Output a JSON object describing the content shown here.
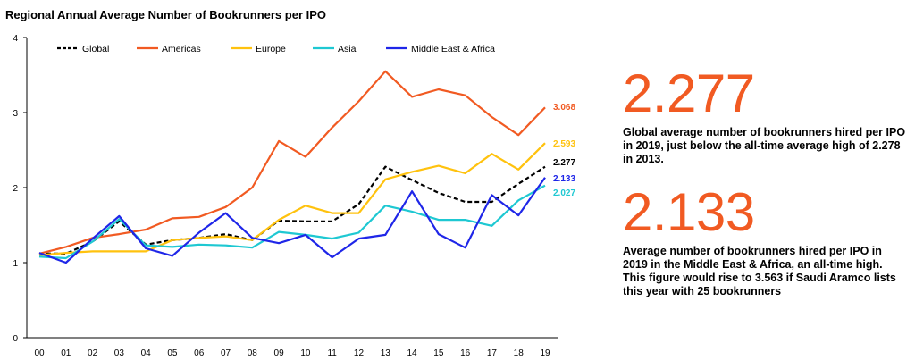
{
  "chart_data": {
    "type": "line",
    "title": "Regional Annual Average Number of Bookrunners per IPO",
    "categories": [
      "00",
      "01",
      "02",
      "03",
      "04",
      "05",
      "06",
      "07",
      "08",
      "09",
      "10",
      "11",
      "12",
      "13",
      "14",
      "15",
      "16",
      "17",
      "18",
      "19"
    ],
    "ylim": [
      0,
      4
    ],
    "yticks": [
      0,
      1,
      2,
      3,
      4
    ],
    "grid": false,
    "legend_position": "top",
    "series": [
      {
        "name": "Global",
        "color": "#000000",
        "dashed": true,
        "values": [
          1.12,
          1.12,
          1.28,
          1.55,
          1.24,
          1.3,
          1.33,
          1.38,
          1.3,
          1.56,
          1.55,
          1.55,
          1.78,
          2.278,
          2.1,
          1.93,
          1.81,
          1.81,
          2.05,
          2.277
        ],
        "end_label": "2.277"
      },
      {
        "name": "Americas",
        "color": "#f15a22",
        "dashed": false,
        "values": [
          1.12,
          1.21,
          1.33,
          1.38,
          1.44,
          1.59,
          1.61,
          1.74,
          2.0,
          2.62,
          2.41,
          2.8,
          3.15,
          3.55,
          3.21,
          3.31,
          3.23,
          2.94,
          2.7,
          3.068
        ],
        "end_label": "3.068"
      },
      {
        "name": "Europe",
        "color": "#ffc20e",
        "dashed": false,
        "values": [
          1.1,
          1.13,
          1.15,
          1.15,
          1.15,
          1.3,
          1.33,
          1.35,
          1.3,
          1.57,
          1.76,
          1.66,
          1.66,
          2.11,
          2.21,
          2.29,
          2.19,
          2.45,
          2.24,
          2.593
        ],
        "end_label": "2.593"
      },
      {
        "name": "Asia",
        "color": "#1ec8d2",
        "dashed": false,
        "values": [
          1.08,
          1.06,
          1.28,
          1.58,
          1.23,
          1.21,
          1.24,
          1.23,
          1.2,
          1.41,
          1.37,
          1.32,
          1.4,
          1.76,
          1.68,
          1.57,
          1.57,
          1.49,
          1.83,
          2.027
        ],
        "end_label": "2.027"
      },
      {
        "name": "Middle East & Africa",
        "color": "#1f26e8",
        "dashed": false,
        "values": [
          1.13,
          1.0,
          1.32,
          1.62,
          1.19,
          1.09,
          1.4,
          1.66,
          1.33,
          1.26,
          1.37,
          1.07,
          1.32,
          1.37,
          1.95,
          1.38,
          1.2,
          1.9,
          1.63,
          2.133
        ],
        "end_label": "2.133"
      }
    ]
  },
  "stats": [
    {
      "number": "2.277",
      "color": "#f15a22",
      "description": "Global average number of bookrunners hired per IPO in 2019, just below the all-time average high of 2.278 in 2013."
    },
    {
      "number": "2.133",
      "color": "#f15a22",
      "description": "Average number of bookrunners hired per IPO in 2019 in the Middle East & Africa, an all-time high. This figure would rise to 3.563 if Saudi Aramco lists this year with 25 bookrunners"
    }
  ]
}
